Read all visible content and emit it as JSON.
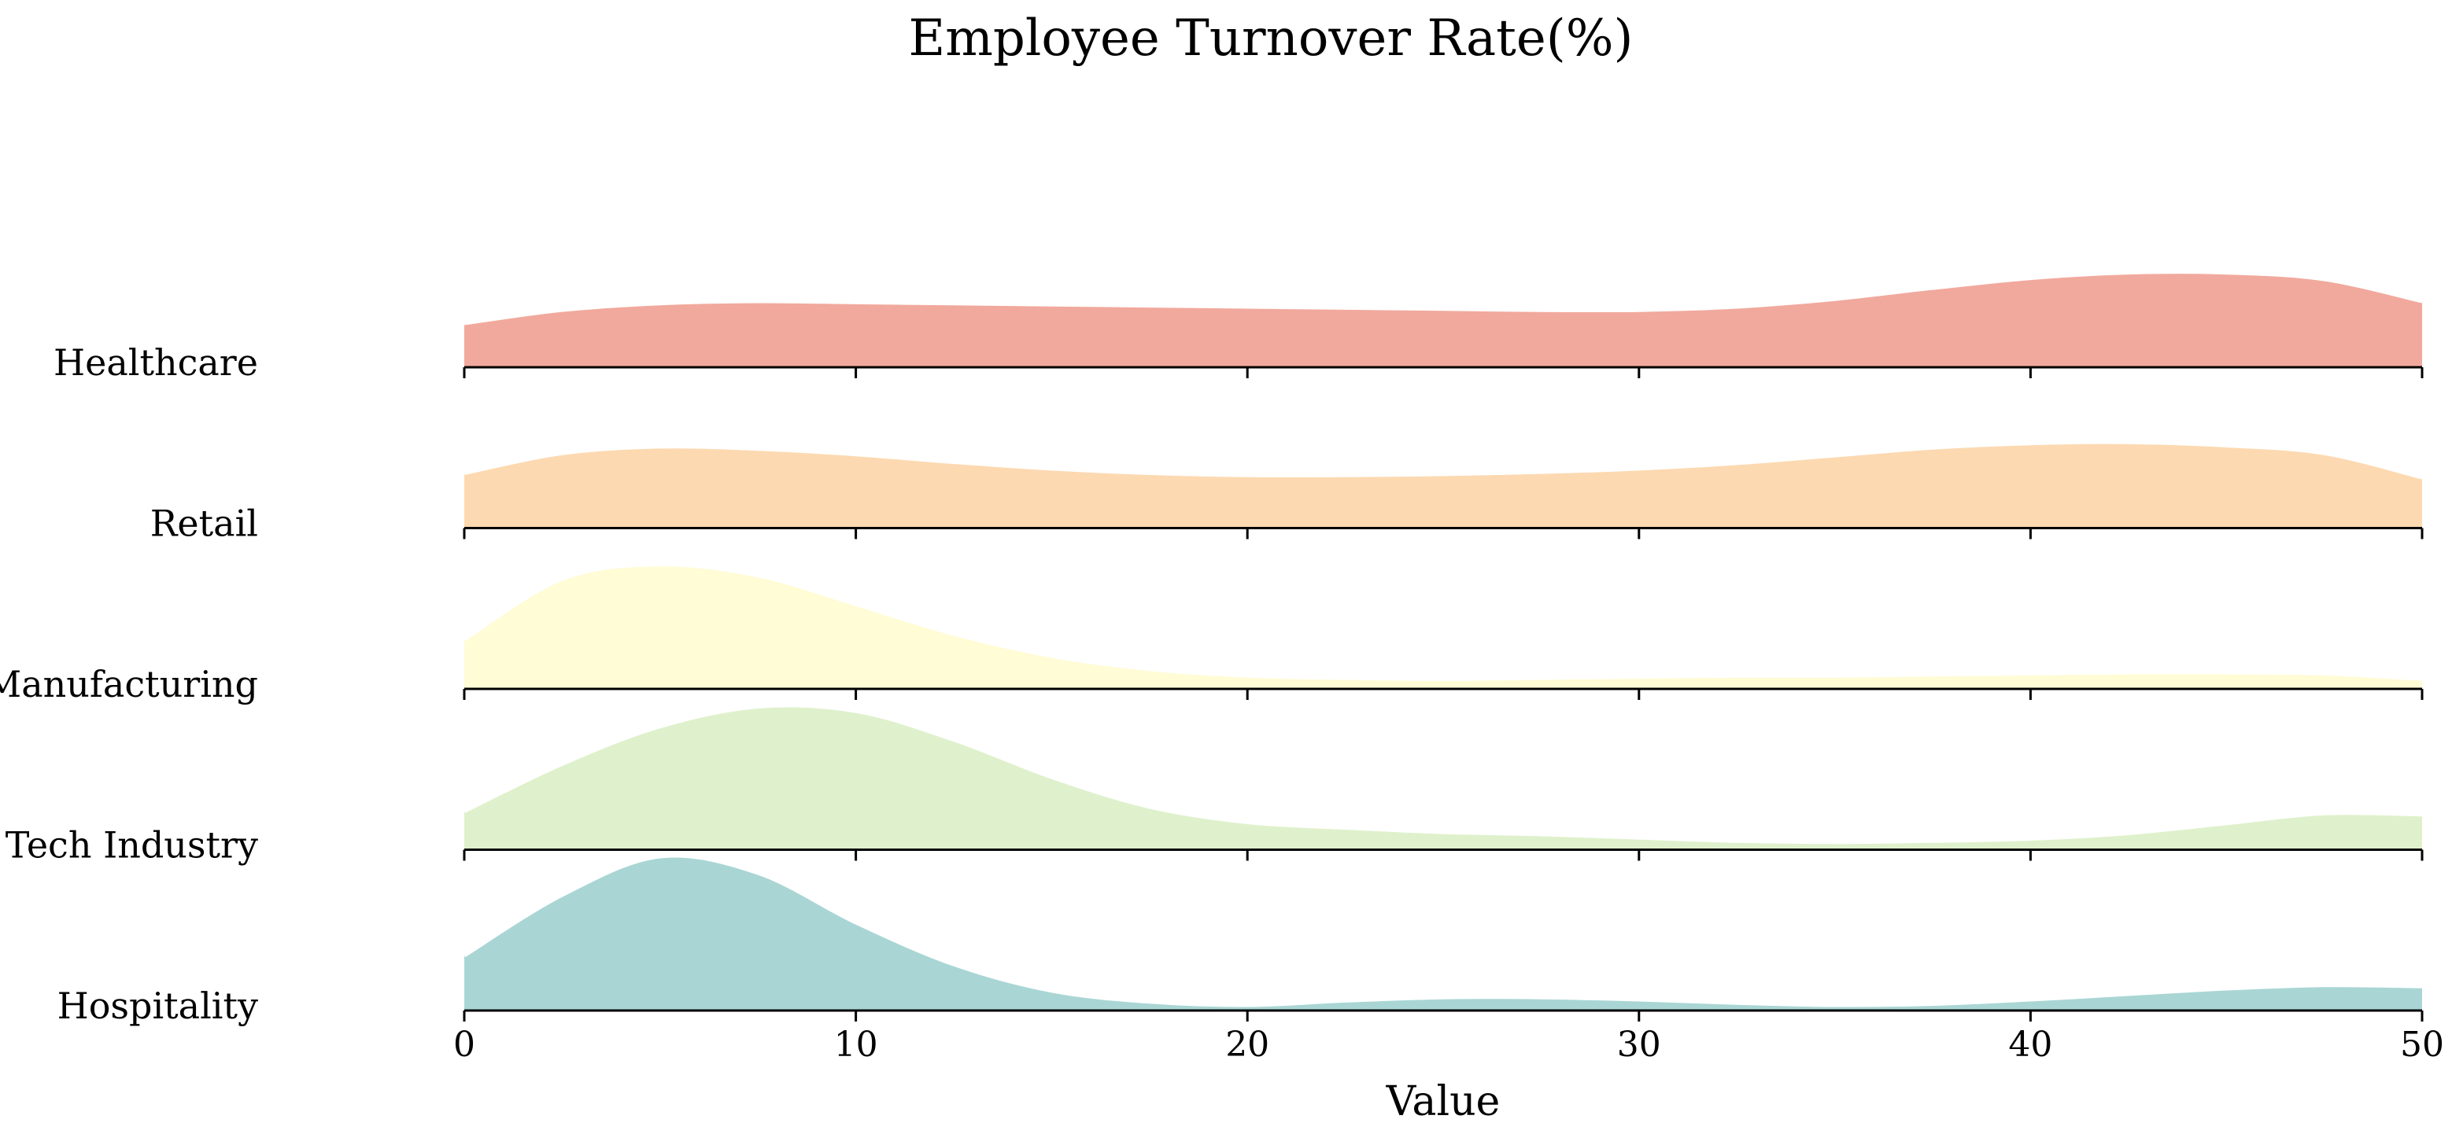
{
  "chart_data": {
    "type": "area",
    "subtype": "ridgeline",
    "title": "Employee Turnover Rate(%)",
    "xlabel": "Value",
    "ylabel": "",
    "xlim": [
      0,
      50
    ],
    "x_ticks": [
      0,
      10,
      20,
      30,
      40,
      50
    ],
    "grid": false,
    "legend": "none",
    "x": [
      0,
      2.5,
      5,
      7.5,
      10,
      12.5,
      15,
      17.5,
      20,
      22.5,
      25,
      27.5,
      30,
      32.5,
      35,
      37.5,
      40,
      42.5,
      45,
      47.5,
      50
    ],
    "series": [
      {
        "name": "Healthcare",
        "color": "#f0a092",
        "values": [
          0.4,
          0.52,
          0.58,
          0.6,
          0.59,
          0.58,
          0.57,
          0.56,
          0.55,
          0.54,
          0.53,
          0.52,
          0.52,
          0.55,
          0.62,
          0.72,
          0.81,
          0.86,
          0.86,
          0.8,
          0.6
        ]
      },
      {
        "name": "Retail",
        "color": "#fdd5a8",
        "values": [
          0.5,
          0.68,
          0.74,
          0.72,
          0.67,
          0.6,
          0.54,
          0.5,
          0.48,
          0.48,
          0.49,
          0.51,
          0.54,
          0.59,
          0.66,
          0.73,
          0.77,
          0.78,
          0.75,
          0.68,
          0.46
        ]
      },
      {
        "name": "Manufacturing",
        "color": "#fffcd2",
        "values": [
          0.45,
          1.0,
          1.13,
          1.03,
          0.77,
          0.5,
          0.3,
          0.18,
          0.12,
          0.1,
          0.09,
          0.1,
          0.11,
          0.12,
          0.12,
          0.13,
          0.14,
          0.15,
          0.15,
          0.14,
          0.09
        ]
      },
      {
        "name": "Tech Industry",
        "color": "#dbf0c7",
        "values": [
          0.35,
          0.78,
          1.12,
          1.3,
          1.26,
          1.0,
          0.66,
          0.39,
          0.25,
          0.2,
          0.16,
          0.14,
          0.11,
          0.08,
          0.07,
          0.08,
          0.1,
          0.15,
          0.24,
          0.33,
          0.32
        ]
      },
      {
        "name": "Hospitality",
        "color": "#a0d2d0",
        "values": [
          0.5,
          1.05,
          1.4,
          1.25,
          0.8,
          0.42,
          0.18,
          0.08,
          0.05,
          0.09,
          0.12,
          0.12,
          0.1,
          0.07,
          0.05,
          0.06,
          0.1,
          0.15,
          0.2,
          0.23,
          0.22
        ]
      }
    ]
  }
}
